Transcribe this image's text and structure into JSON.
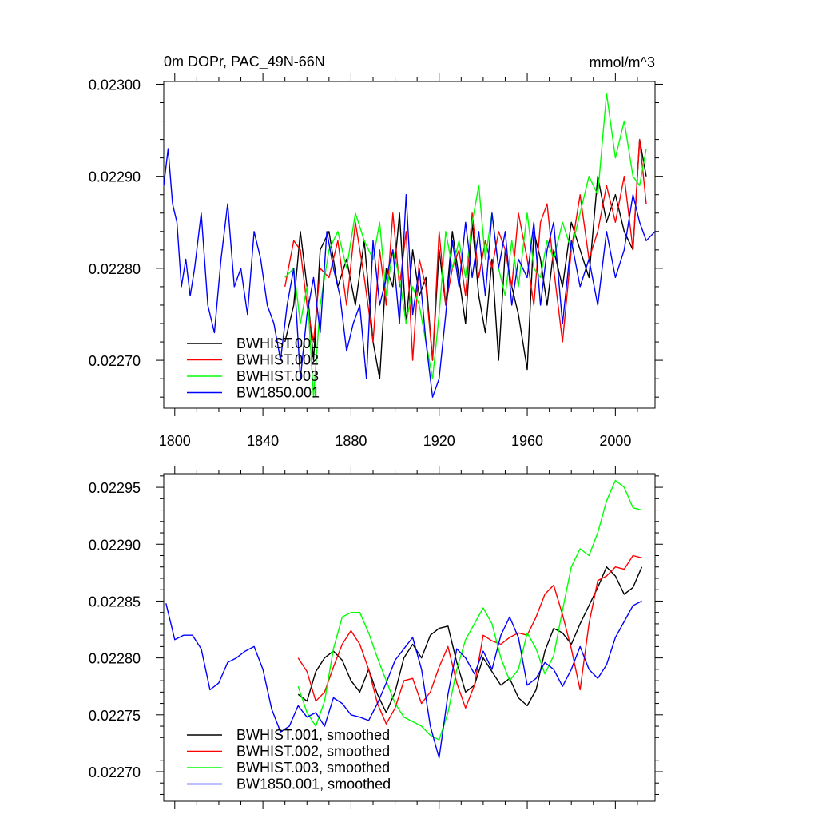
{
  "chart_data": [
    {
      "type": "line",
      "title": "0m DOPr, PAC_49N-66N",
      "units": "mmol/m^3",
      "xlim": [
        1795,
        2018
      ],
      "ylim": [
        0.022648,
        0.023003
      ],
      "x_ticks": [
        1800,
        1840,
        1880,
        1920,
        1960,
        2000
      ],
      "x_tick_labels": [
        "1800",
        "1840",
        "1880",
        "1920",
        "1960",
        "2000"
      ],
      "y_ticks": [
        0.0227,
        0.0228,
        0.0229,
        0.023
      ],
      "y_tick_labels": [
        "0.02270",
        "0.02280",
        "0.02290",
        "0.02300"
      ],
      "legend_position": "lower-left",
      "series": [
        {
          "name": "BWHIST.001",
          "color": "#000000",
          "x": [
            1850,
            1854,
            1857,
            1860,
            1863,
            1866,
            1870,
            1874,
            1878,
            1882,
            1886,
            1890,
            1893,
            1896,
            1899,
            1902,
            1905,
            1908,
            1911,
            1914,
            1917,
            1920,
            1923,
            1926,
            1929,
            1932,
            1935,
            1938,
            1941,
            1944,
            1947,
            1950,
            1953,
            1956,
            1960,
            1963,
            1966,
            1969,
            1972,
            1976,
            1980,
            1984,
            1988,
            1992,
            1996,
            2000,
            2004,
            2008,
            2011,
            2014
          ],
          "y": [
            0.02272,
            0.02276,
            0.02284,
            0.02278,
            0.0227,
            0.02282,
            0.02284,
            0.02278,
            0.02281,
            0.02276,
            0.02283,
            0.02272,
            0.02268,
            0.0228,
            0.02278,
            0.02286,
            0.02274,
            0.02282,
            0.02277,
            0.02279,
            0.0227,
            0.02282,
            0.02276,
            0.02284,
            0.02279,
            0.02274,
            0.02285,
            0.02277,
            0.02273,
            0.02281,
            0.0227,
            0.02282,
            0.02278,
            0.02275,
            0.02269,
            0.02284,
            0.02281,
            0.02276,
            0.02282,
            0.02278,
            0.02285,
            0.02282,
            0.02279,
            0.0229,
            0.02285,
            0.02288,
            0.02284,
            0.02282,
            0.02294,
            0.0229
          ]
        },
        {
          "name": "BWHIST.002",
          "color": "#ff0000",
          "x": [
            1850,
            1854,
            1857,
            1860,
            1863,
            1866,
            1870,
            1874,
            1878,
            1882,
            1886,
            1890,
            1893,
            1896,
            1899,
            1902,
            1905,
            1908,
            1911,
            1914,
            1917,
            1920,
            1923,
            1926,
            1929,
            1932,
            1935,
            1938,
            1941,
            1944,
            1947,
            1950,
            1953,
            1956,
            1960,
            1963,
            1966,
            1969,
            1972,
            1976,
            1980,
            1984,
            1988,
            1992,
            1996,
            2000,
            2004,
            2008,
            2011,
            2014
          ],
          "y": [
            0.02278,
            0.02283,
            0.02282,
            0.02276,
            0.02272,
            0.0228,
            0.02279,
            0.02283,
            0.02276,
            0.02285,
            0.02279,
            0.02272,
            0.02282,
            0.02276,
            0.02286,
            0.02278,
            0.02284,
            0.0227,
            0.02281,
            0.02278,
            0.0227,
            0.02284,
            0.02276,
            0.0228,
            0.02282,
            0.02277,
            0.02286,
            0.02279,
            0.02283,
            0.0228,
            0.02284,
            0.02282,
            0.02278,
            0.02286,
            0.02281,
            0.02276,
            0.02285,
            0.02287,
            0.0228,
            0.02272,
            0.02282,
            0.02288,
            0.02281,
            0.02284,
            0.02289,
            0.02285,
            0.0229,
            0.02282,
            0.02294,
            0.02287
          ]
        },
        {
          "name": "BWHIST.003",
          "color": "#00ff00",
          "x": [
            1850,
            1854,
            1857,
            1860,
            1863,
            1866,
            1870,
            1874,
            1878,
            1882,
            1886,
            1890,
            1893,
            1896,
            1899,
            1902,
            1905,
            1908,
            1911,
            1914,
            1917,
            1920,
            1923,
            1926,
            1929,
            1932,
            1935,
            1938,
            1941,
            1944,
            1947,
            1950,
            1953,
            1956,
            1960,
            1963,
            1966,
            1969,
            1972,
            1976,
            1980,
            1984,
            1988,
            1992,
            1996,
            2000,
            2004,
            2008,
            2011,
            2014
          ],
          "y": [
            0.02279,
            0.0228,
            0.02274,
            0.02278,
            0.02266,
            0.02276,
            0.02282,
            0.02284,
            0.0228,
            0.02286,
            0.02283,
            0.02281,
            0.02285,
            0.02277,
            0.02282,
            0.02279,
            0.02274,
            0.02278,
            0.02276,
            0.02272,
            0.02268,
            0.02275,
            0.02284,
            0.0228,
            0.02283,
            0.02279,
            0.02285,
            0.02289,
            0.02281,
            0.02286,
            0.0228,
            0.02277,
            0.02283,
            0.02278,
            0.02286,
            0.0228,
            0.02279,
            0.02283,
            0.02281,
            0.02285,
            0.02282,
            0.02286,
            0.0229,
            0.02288,
            0.02299,
            0.02292,
            0.02296,
            0.0229,
            0.02289,
            0.02293
          ]
        },
        {
          "name": "BW1850.001",
          "color": "#0000ff",
          "x": [
            1795,
            1797,
            1799,
            1801,
            1803,
            1805,
            1807,
            1809,
            1812,
            1815,
            1818,
            1821,
            1824,
            1827,
            1830,
            1833,
            1836,
            1839,
            1842,
            1845,
            1848,
            1851,
            1854,
            1857,
            1860,
            1863,
            1866,
            1869,
            1872,
            1875,
            1878,
            1881,
            1884,
            1887,
            1890,
            1893,
            1896,
            1899,
            1902,
            1905,
            1908,
            1911,
            1914,
            1917,
            1920,
            1923,
            1926,
            1929,
            1932,
            1935,
            1938,
            1941,
            1944,
            1947,
            1950,
            1953,
            1956,
            1960,
            1963,
            1966,
            1969,
            1972,
            1976,
            1980,
            1984,
            1988,
            1992,
            1996,
            2000,
            2004,
            2008,
            2011,
            2014,
            2018
          ],
          "y": [
            0.02289,
            0.02293,
            0.02287,
            0.02285,
            0.02278,
            0.02281,
            0.02277,
            0.0228,
            0.02286,
            0.02276,
            0.02273,
            0.02281,
            0.02287,
            0.02278,
            0.0228,
            0.02275,
            0.02284,
            0.02281,
            0.02276,
            0.02274,
            0.0227,
            0.02276,
            0.0228,
            0.02268,
            0.02275,
            0.02279,
            0.02273,
            0.02284,
            0.0228,
            0.02277,
            0.02271,
            0.02274,
            0.02276,
            0.02268,
            0.02283,
            0.02276,
            0.02279,
            0.02282,
            0.02274,
            0.02288,
            0.02275,
            0.0228,
            0.02272,
            0.02266,
            0.02268,
            0.02275,
            0.02283,
            0.02278,
            0.02285,
            0.02279,
            0.02284,
            0.02277,
            0.02286,
            0.0228,
            0.02284,
            0.02276,
            0.02281,
            0.02279,
            0.02285,
            0.02276,
            0.02282,
            0.02285,
            0.02274,
            0.02283,
            0.02278,
            0.02281,
            0.02276,
            0.02284,
            0.02279,
            0.02282,
            0.02288,
            0.02285,
            0.02283,
            0.02284
          ]
        }
      ]
    },
    {
      "type": "line",
      "title": "",
      "xlim": [
        1795,
        2018
      ],
      "ylim": [
        0.022674,
        0.022962
      ],
      "x_ticks": [
        1800,
        1840,
        1880,
        1920,
        1960,
        2000
      ],
      "y_ticks": [
        0.0227,
        0.02275,
        0.0228,
        0.02285,
        0.0229,
        0.02295
      ],
      "y_tick_labels": [
        "0.02270",
        "0.02275",
        "0.02280",
        "0.02285",
        "0.02290",
        "0.02295"
      ],
      "legend_position": "lower-left",
      "series": [
        {
          "name": "BWHIST.001, smoothed",
          "color": "#000000",
          "x": [
            1856,
            1860,
            1864,
            1868,
            1872,
            1876,
            1880,
            1884,
            1888,
            1892,
            1896,
            1900,
            1904,
            1908,
            1912,
            1916,
            1920,
            1924,
            1928,
            1932,
            1936,
            1940,
            1944,
            1948,
            1952,
            1956,
            1960,
            1964,
            1968,
            1972,
            1976,
            1980,
            1984,
            1988,
            1992,
            1996,
            2000,
            2004,
            2008,
            2012
          ],
          "y": [
            0.022768,
            0.022762,
            0.022788,
            0.0228,
            0.022806,
            0.022798,
            0.02278,
            0.02277,
            0.02279,
            0.022768,
            0.022752,
            0.02277,
            0.0228,
            0.022812,
            0.0228,
            0.02282,
            0.022826,
            0.022828,
            0.022796,
            0.02277,
            0.022776,
            0.0228,
            0.022788,
            0.022776,
            0.022782,
            0.022765,
            0.022758,
            0.022772,
            0.022806,
            0.022826,
            0.022822,
            0.022812,
            0.02283,
            0.022846,
            0.022862,
            0.02288,
            0.022872,
            0.022856,
            0.022862,
            0.02288
          ]
        },
        {
          "name": "BWHIST.002, smoothed",
          "color": "#ff0000",
          "x": [
            1856,
            1860,
            1864,
            1868,
            1872,
            1876,
            1880,
            1884,
            1888,
            1892,
            1896,
            1900,
            1904,
            1908,
            1912,
            1916,
            1920,
            1924,
            1928,
            1932,
            1936,
            1940,
            1944,
            1948,
            1952,
            1956,
            1960,
            1964,
            1968,
            1972,
            1976,
            1980,
            1984,
            1988,
            1992,
            1996,
            2000,
            2004,
            2008,
            2012
          ],
          "y": [
            0.0228,
            0.022788,
            0.022762,
            0.02277,
            0.022792,
            0.022812,
            0.022824,
            0.022812,
            0.02279,
            0.02276,
            0.022742,
            0.022756,
            0.02278,
            0.022782,
            0.02276,
            0.02277,
            0.022792,
            0.02281,
            0.022778,
            0.022756,
            0.022776,
            0.02282,
            0.022815,
            0.022812,
            0.022818,
            0.022822,
            0.02282,
            0.022836,
            0.022856,
            0.022864,
            0.022838,
            0.022808,
            0.022772,
            0.02283,
            0.022868,
            0.022872,
            0.02288,
            0.022878,
            0.02289,
            0.022888
          ]
        },
        {
          "name": "BWHIST.003, smoothed",
          "color": "#00ff00",
          "x": [
            1856,
            1860,
            1864,
            1868,
            1872,
            1876,
            1880,
            1884,
            1888,
            1892,
            1896,
            1900,
            1904,
            1908,
            1912,
            1916,
            1920,
            1924,
            1928,
            1932,
            1936,
            1940,
            1944,
            1948,
            1952,
            1956,
            1960,
            1964,
            1968,
            1972,
            1976,
            1980,
            1984,
            1988,
            1992,
            1996,
            2000,
            2004,
            2008,
            2012
          ],
          "y": [
            0.022775,
            0.022752,
            0.02274,
            0.022762,
            0.022808,
            0.022836,
            0.02284,
            0.02284,
            0.022822,
            0.0228,
            0.02278,
            0.02276,
            0.022748,
            0.022744,
            0.02274,
            0.022732,
            0.022728,
            0.022752,
            0.02279,
            0.022816,
            0.02283,
            0.022844,
            0.02283,
            0.0228,
            0.02278,
            0.02279,
            0.022822,
            0.022808,
            0.022786,
            0.022802,
            0.022842,
            0.02288,
            0.022896,
            0.02289,
            0.02291,
            0.022938,
            0.022956,
            0.02295,
            0.022932,
            0.02293
          ]
        },
        {
          "name": "BW1850.001, smoothed",
          "color": "#0000ff",
          "x": [
            1796,
            1800,
            1804,
            1808,
            1812,
            1816,
            1820,
            1824,
            1828,
            1832,
            1836,
            1840,
            1844,
            1848,
            1852,
            1856,
            1860,
            1864,
            1868,
            1872,
            1876,
            1880,
            1884,
            1888,
            1892,
            1896,
            1900,
            1904,
            1908,
            1912,
            1916,
            1920,
            1924,
            1928,
            1932,
            1936,
            1940,
            1944,
            1948,
            1952,
            1956,
            1960,
            1964,
            1968,
            1972,
            1976,
            1980,
            1984,
            1988,
            1992,
            1996,
            2000,
            2004,
            2008,
            2012
          ],
          "y": [
            0.022848,
            0.022816,
            0.02282,
            0.02282,
            0.022808,
            0.022772,
            0.022778,
            0.022796,
            0.0228,
            0.022806,
            0.02281,
            0.02279,
            0.022755,
            0.022735,
            0.02274,
            0.022758,
            0.022748,
            0.022752,
            0.02274,
            0.022765,
            0.02276,
            0.02275,
            0.022748,
            0.022745,
            0.02276,
            0.022778,
            0.022798,
            0.022808,
            0.022818,
            0.02279,
            0.02274,
            0.022712,
            0.022768,
            0.022808,
            0.0228,
            0.022786,
            0.022806,
            0.02279,
            0.02282,
            0.022836,
            0.022818,
            0.022776,
            0.022782,
            0.022796,
            0.02279,
            0.022775,
            0.02279,
            0.02281,
            0.02279,
            0.022782,
            0.022794,
            0.022818,
            0.022832,
            0.022846,
            0.02285
          ]
        }
      ]
    }
  ]
}
